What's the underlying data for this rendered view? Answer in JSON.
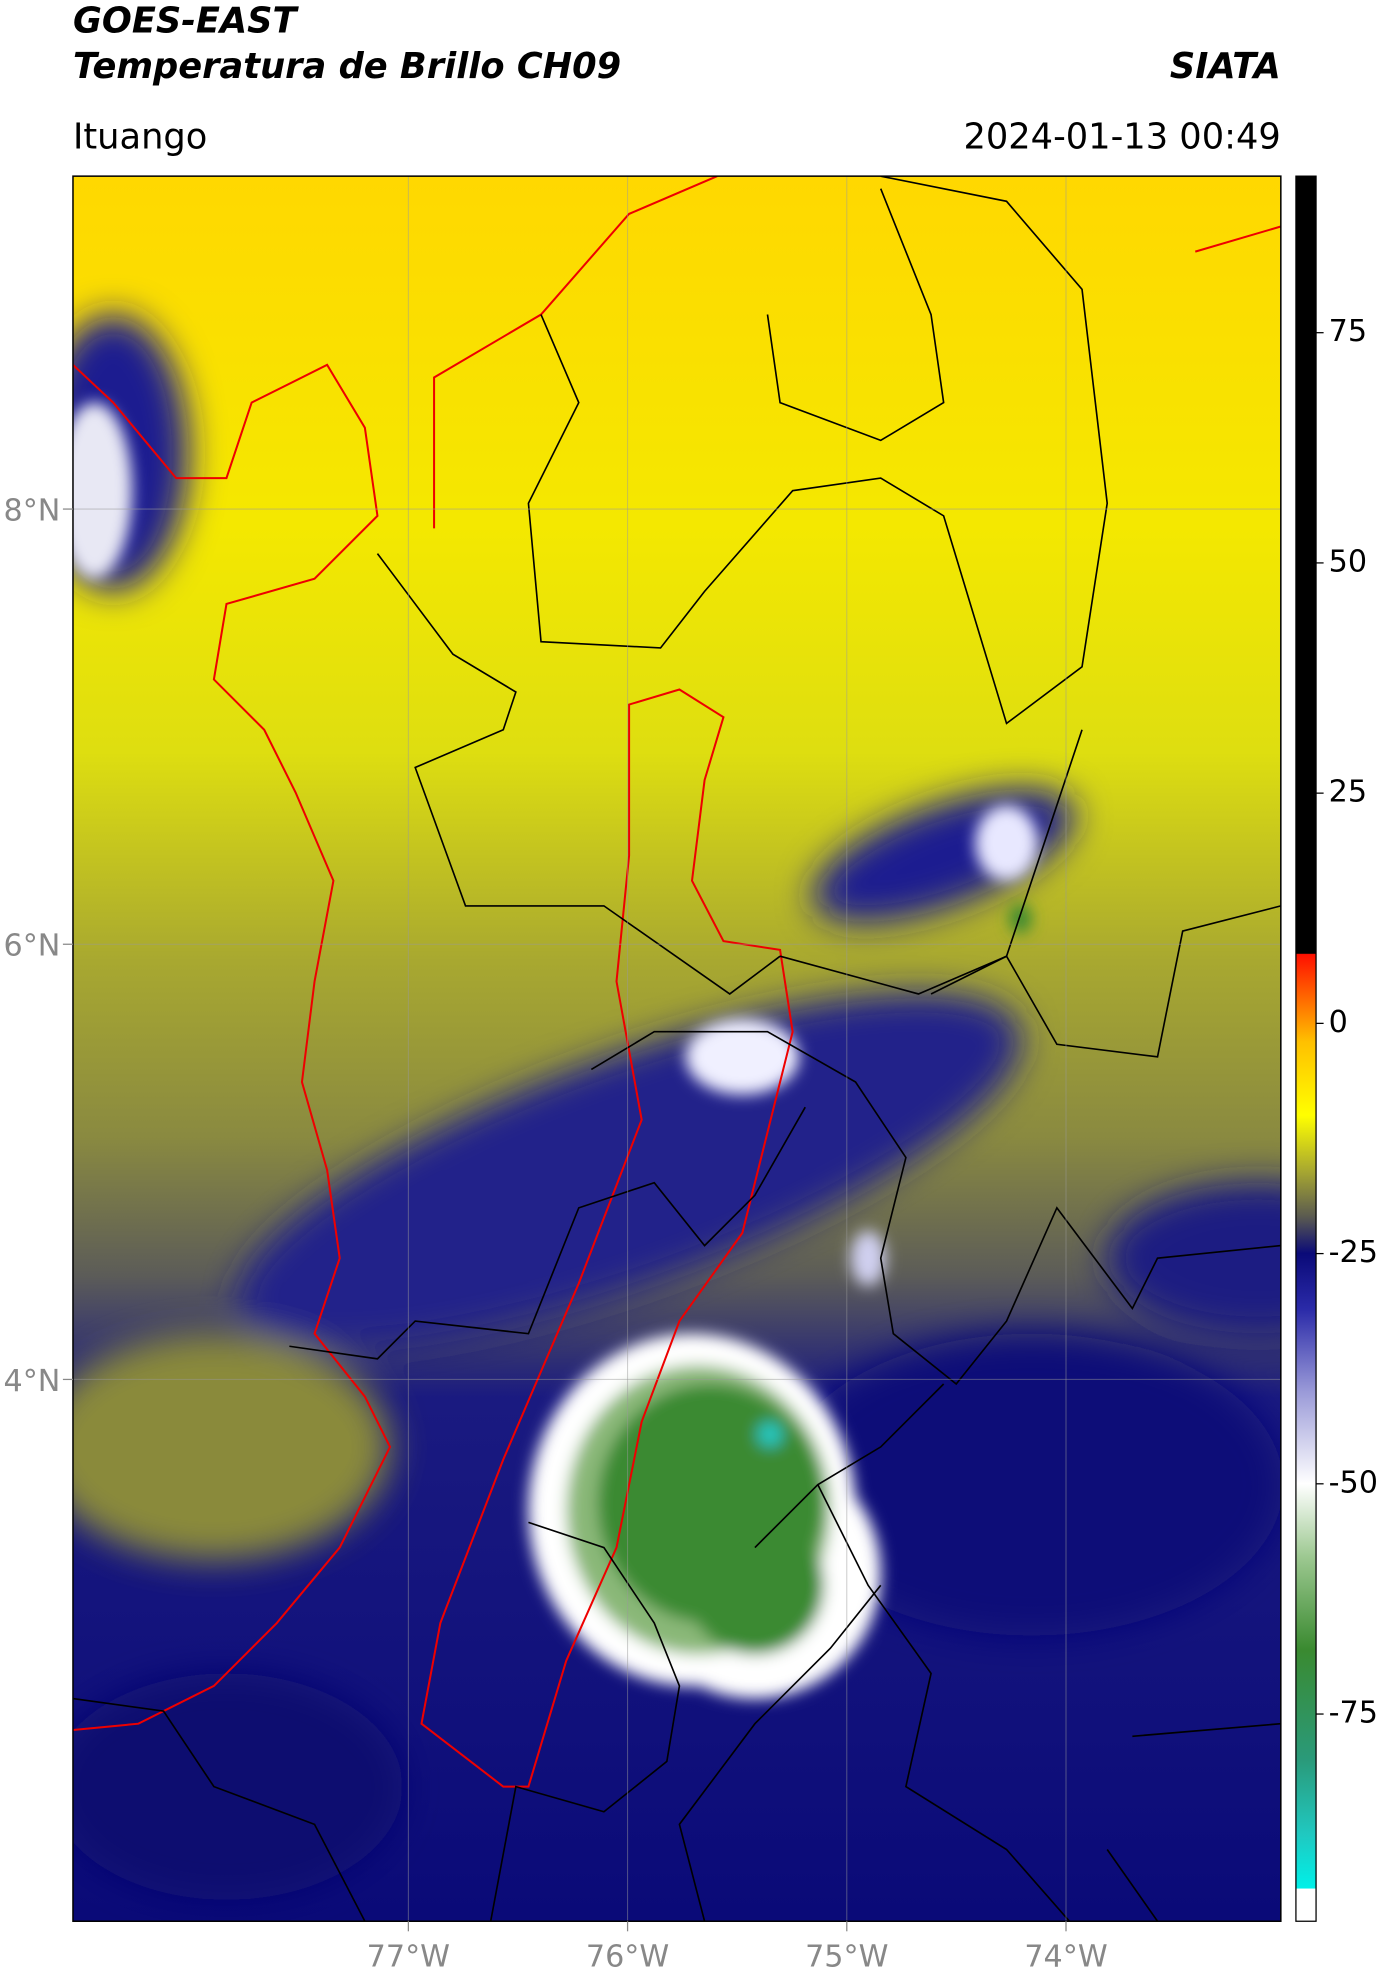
{
  "header": {
    "title": "GOES-EAST",
    "subtitle": "Temperatura de Brillo CH09",
    "source": "SIATA",
    "region": "Ituango",
    "timestamp": "2024-01-13 00:49"
  },
  "map": {
    "xlim": [
      -78.53,
      -73.02
    ],
    "ylim": [
      1.51,
      9.53
    ],
    "xticks": [
      {
        "value": -77,
        "label": "77°W"
      },
      {
        "value": -76,
        "label": "76°W"
      },
      {
        "value": -75,
        "label": "75°W"
      },
      {
        "value": -74,
        "label": "74°W"
      }
    ],
    "yticks": [
      {
        "value": 8,
        "label": "8°N"
      },
      {
        "value": 6,
        "label": "6°N"
      },
      {
        "value": 4,
        "label": "4°N"
      }
    ],
    "grid": true
  },
  "colorbar": {
    "lim": [
      -97.5,
      92
    ],
    "ticks": [
      75,
      50,
      25,
      0,
      -25,
      -50,
      -75
    ],
    "stops": [
      {
        "value": -97.5,
        "color": "#ffffff"
      },
      {
        "value": -94,
        "color": "#ffffff"
      },
      {
        "value": -93.9,
        "color": "#00f0e8"
      },
      {
        "value": -88,
        "color": "#20c8c0"
      },
      {
        "value": -80,
        "color": "#2a9a7a"
      },
      {
        "value": -68,
        "color": "#3a8a30"
      },
      {
        "value": -58,
        "color": "#9cc890"
      },
      {
        "value": -50,
        "color": "#ffffff"
      },
      {
        "value": -40,
        "color": "#9a9ad8"
      },
      {
        "value": -31,
        "color": "#2a2aa8"
      },
      {
        "value": -25,
        "color": "#0a0a78"
      },
      {
        "value": -21,
        "color": "#5a5a50"
      },
      {
        "value": -16,
        "color": "#a8a830"
      },
      {
        "value": -10,
        "color": "#ffff00"
      },
      {
        "value": -2,
        "color": "#ffc000"
      },
      {
        "value": 7.5,
        "color": "#ff1000"
      },
      {
        "value": 7.6,
        "color": "#000000"
      },
      {
        "value": 92,
        "color": "#000000"
      }
    ]
  }
}
